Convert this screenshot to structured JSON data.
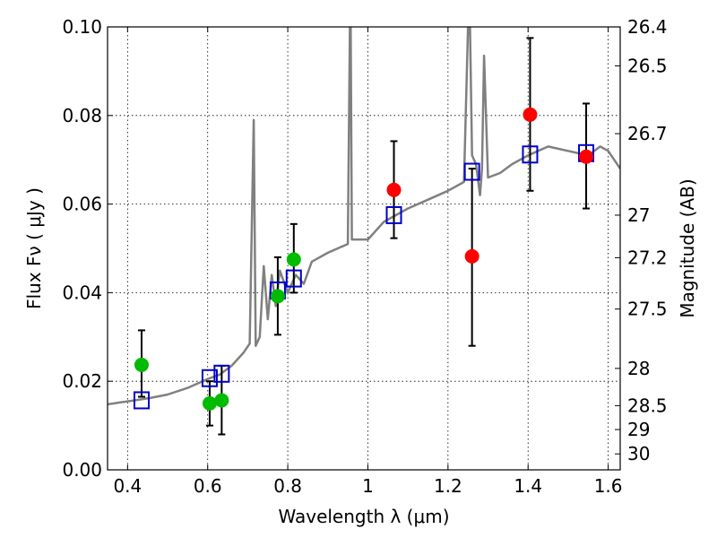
{
  "chart_data": {
    "type": "scatter",
    "xlabel": "Wavelength  λ (μm)",
    "ylabel": "Flux  Fν  ( μJy )",
    "ylabel_right": "Magnitude (AB)",
    "xlim": [
      0.35,
      1.63
    ],
    "ylim": [
      0.0,
      0.1
    ],
    "grid": true,
    "x_ticks": [
      0.4,
      0.6,
      0.8,
      1.0,
      1.2,
      1.4,
      1.6
    ],
    "x_tick_labels": [
      "0.4",
      "0.6",
      "0.8",
      "1",
      "1.2",
      "1.4",
      "1.6"
    ],
    "y_ticks": [
      0.0,
      0.02,
      0.04,
      0.06,
      0.08,
      0.1
    ],
    "y_tick_labels": [
      "0.00",
      "0.02",
      "0.04",
      "0.06",
      "0.08",
      "0.10"
    ],
    "right_ticks": [
      {
        "label": "26.4",
        "flux": 0.1
      },
      {
        "label": "26.5",
        "flux": 0.0912
      },
      {
        "label": "26.7",
        "flux": 0.0759
      },
      {
        "label": "27",
        "flux": 0.0575
      },
      {
        "label": "27.2",
        "flux": 0.0479
      },
      {
        "label": "27.5",
        "flux": 0.0363
      },
      {
        "label": "28",
        "flux": 0.0229
      },
      {
        "label": "28.5",
        "flux": 0.0145
      },
      {
        "label": "29",
        "flux": 0.0091
      },
      {
        "label": "30",
        "flux": 0.0036
      }
    ],
    "series": [
      {
        "color": "#808080",
        "kind": "line",
        "x": [
          0.35,
          0.38,
          0.42,
          0.46,
          0.5,
          0.55,
          0.6,
          0.63,
          0.66,
          0.69,
          0.705,
          0.715,
          0.72,
          0.73,
          0.74,
          0.75,
          0.76,
          0.77,
          0.78,
          0.8,
          0.82,
          0.84,
          0.86,
          0.9,
          0.95,
          0.955,
          0.957,
          0.96,
          1.0,
          1.04,
          1.06,
          1.1,
          1.15,
          1.2,
          1.24,
          1.25,
          1.255,
          1.26,
          1.27,
          1.28,
          1.285,
          1.29,
          1.3,
          1.33,
          1.36,
          1.4,
          1.45,
          1.5,
          1.55,
          1.58,
          1.6,
          1.63
        ],
        "y": [
          0.0148,
          0.0152,
          0.0157,
          0.0163,
          0.017,
          0.0185,
          0.0205,
          0.0215,
          0.0235,
          0.0265,
          0.0285,
          0.079,
          0.028,
          0.03,
          0.046,
          0.034,
          0.044,
          0.037,
          0.045,
          0.04,
          0.044,
          0.042,
          0.047,
          0.049,
          0.051,
          0.1,
          0.1,
          0.052,
          0.052,
          0.056,
          0.057,
          0.059,
          0.061,
          0.063,
          0.065,
          0.1,
          0.1,
          0.071,
          0.069,
          0.062,
          0.068,
          0.0935,
          0.066,
          0.067,
          0.069,
          0.071,
          0.073,
          0.072,
          0.071,
          0.073,
          0.072,
          0.068
        ]
      },
      {
        "color": "#00bb00",
        "kind": "points",
        "x": [
          0.435,
          0.605,
          0.635,
          0.775,
          0.815
        ],
        "y": [
          0.0237,
          0.015,
          0.0157,
          0.0392,
          0.0475
        ],
        "yerr_low": [
          0.0165,
          0.01,
          0.008,
          0.0305,
          0.04
        ],
        "yerr_high": [
          0.0315,
          0.02,
          0.0235,
          0.048,
          0.0555
        ]
      },
      {
        "color": "#ff0000",
        "kind": "points",
        "x": [
          1.065,
          1.26,
          1.405,
          1.545
        ],
        "y": [
          0.0632,
          0.0482,
          0.0802,
          0.0707
        ],
        "yerr_low": [
          0.0523,
          0.028,
          0.063,
          0.059
        ],
        "yerr_high": [
          0.0742,
          0.068,
          0.0975,
          0.0827
        ]
      },
      {
        "color": "#0000cc",
        "kind": "squares",
        "x": [
          0.435,
          0.605,
          0.635,
          0.775,
          0.815,
          1.065,
          1.26,
          1.405,
          1.545
        ],
        "y": [
          0.0157,
          0.0207,
          0.0217,
          0.0405,
          0.0432,
          0.0575,
          0.0673,
          0.0712,
          0.0715
        ]
      }
    ]
  }
}
